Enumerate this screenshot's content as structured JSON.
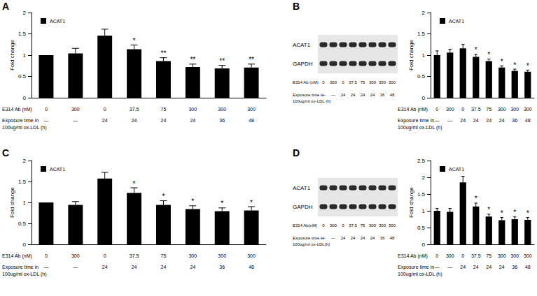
{
  "panel_labels": [
    "A",
    "B",
    "C",
    "D"
  ],
  "chart_data": [
    {
      "type": "bar",
      "legend": "top-left",
      "grid": false,
      "ylabel": "Fold change",
      "ylim": [
        0,
        2
      ],
      "yticks": [
        0,
        0.5,
        1,
        1.5,
        2
      ],
      "category_rows": [
        {
          "label": "E314 Ab (nM)",
          "values": [
            "0",
            "300",
            "0",
            "37.5",
            "75",
            "300",
            "300",
            "300"
          ]
        },
        {
          "label": "Exposure time in\n100ug/ml ox-LDL (h)",
          "values": [
            "—",
            "—",
            "24",
            "24",
            "24",
            "24",
            "36",
            "48"
          ]
        }
      ],
      "series": [
        {
          "name": "ACAT1",
          "color": "#000000",
          "values": [
            1,
            1.04,
            1.46,
            1.14,
            0.86,
            0.72,
            0.69,
            0.71
          ],
          "errors": [
            0,
            0.12,
            0.15,
            0.1,
            0.08,
            0.07,
            0.07,
            0.08
          ],
          "annotations": [
            null,
            null,
            null,
            "*",
            "**",
            "**",
            "**",
            "**"
          ]
        }
      ]
    },
    {
      "type": "bar",
      "legend": "top-left",
      "grid": false,
      "ylabel": "Fold change",
      "ylim": [
        0,
        2
      ],
      "yticks": [
        0,
        0.5,
        1,
        1.5,
        2
      ],
      "category_rows": [
        {
          "label": "E314 Ab (nM)",
          "values": [
            "0",
            "300",
            "0",
            "37.5",
            "75",
            "300",
            "300",
            "300"
          ]
        },
        {
          "label": "Exposure time in\n100ug/ml ox-LDL (h)",
          "values": [
            "—",
            "—",
            "24",
            "24",
            "24",
            "24",
            "36",
            "48"
          ]
        }
      ],
      "series": [
        {
          "name": "ACAT1",
          "color": "#000000",
          "values": [
            1,
            1.06,
            1.16,
            0.96,
            0.86,
            0.71,
            0.63,
            0.61
          ],
          "errors": [
            0.1,
            0.08,
            0.09,
            0.06,
            0.05,
            0.04,
            0.04,
            0.04
          ],
          "annotations": [
            null,
            null,
            null,
            "*",
            "*",
            "*",
            "*",
            "*"
          ]
        }
      ],
      "blot": {
        "rows": [
          "ACAT1",
          "GAPDH"
        ],
        "lane_rows": [
          {
            "label": "E314 Ab (nM)",
            "values": [
              "0",
              "300",
              "0",
              "37.5",
              "75",
              "300",
              "300",
              "300"
            ]
          },
          {
            "label": "Exposure time in\n100ug/ml ox-LDL (h)",
            "values": [
              "—",
              "—",
              "24",
              "24",
              "24",
              "24",
              "36",
              "48"
            ]
          }
        ]
      }
    },
    {
      "type": "bar",
      "legend": "top-left",
      "grid": false,
      "ylabel": "Fold change",
      "ylim": [
        0,
        2
      ],
      "yticks": [
        0,
        0.5,
        1,
        1.5,
        2
      ],
      "category_rows": [
        {
          "label": "E314 Ab (nM)",
          "values": [
            "0",
            "300",
            "0",
            "37.5",
            "75",
            "300",
            "300",
            "300"
          ]
        },
        {
          "label": "Exposure time in\n100ug/ml ox-LDL (h)",
          "values": [
            "—",
            "—",
            "24",
            "24",
            "24",
            "24",
            "36",
            "48"
          ]
        }
      ],
      "series": [
        {
          "name": "ACAT1",
          "color": "#000000",
          "values": [
            1,
            0.94,
            1.57,
            1.23,
            0.94,
            0.84,
            0.79,
            0.81
          ],
          "errors": [
            0,
            0.08,
            0.15,
            0.12,
            0.1,
            0.08,
            0.08,
            0.09
          ],
          "annotations": [
            null,
            null,
            null,
            "*",
            "*",
            "*",
            "*",
            "*"
          ]
        }
      ]
    },
    {
      "type": "bar",
      "legend": "top-left",
      "grid": false,
      "ylabel": "Fold change",
      "ylim": [
        0,
        2.5
      ],
      "yticks": [
        0,
        0.5,
        1,
        1.5,
        2,
        2.5
      ],
      "category_rows": [
        {
          "label": "E314 Ab (nM)",
          "values": [
            "0",
            "300",
            "0",
            "37.5",
            "75",
            "300",
            "300",
            "300"
          ]
        },
        {
          "label": "Exposure time in\n100ug/ml ox-LDL (h)",
          "values": [
            "—",
            "—",
            "24",
            "24",
            "24",
            "24",
            "36",
            "48"
          ]
        }
      ],
      "series": [
        {
          "name": "ACAT1",
          "color": "#000000",
          "values": [
            1,
            0.97,
            1.85,
            1.13,
            0.83,
            0.72,
            0.75,
            0.73
          ],
          "errors": [
            0.07,
            0.1,
            0.18,
            0.1,
            0.07,
            0.08,
            0.07,
            0.07
          ],
          "annotations": [
            null,
            null,
            null,
            "*",
            "*",
            "*",
            "*",
            "*"
          ]
        }
      ],
      "blot": {
        "rows": [
          "ACAT1",
          "GAPDH"
        ],
        "lane_rows": [
          {
            "label": "E314 Ab(nM)",
            "values": [
              "0",
              "300",
              "0",
              "37.5",
              "75",
              "300",
              "300",
              "300"
            ]
          },
          {
            "label": "Exposure time in\n100ug/ml ox-LDL(h)",
            "values": [
              "—",
              "—",
              "24",
              "24",
              "24",
              "24",
              "36",
              "48"
            ]
          }
        ]
      }
    }
  ]
}
